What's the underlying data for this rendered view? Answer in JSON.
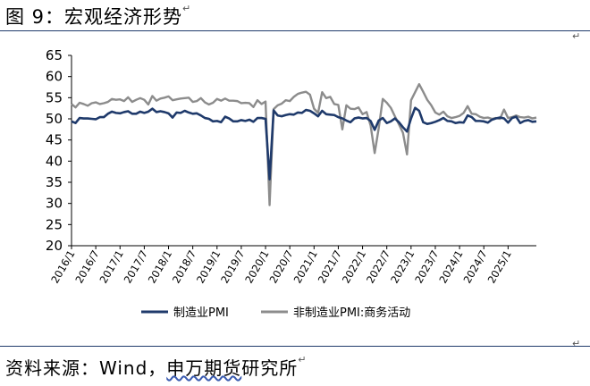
{
  "title": "图 9：宏观经济形势",
  "source": {
    "prefix": "资料来源：Wind，",
    "underlined": "申万期货",
    "suffix": "研究所"
  },
  "return_mark": "↵",
  "colors": {
    "rule": "#1f3a6b",
    "series_manufacturing": "#1f3a6b",
    "series_nonmanufacturing": "#8c8c8c"
  },
  "chart_data": {
    "type": "line",
    "y_ticks": [
      20,
      25,
      30,
      35,
      40,
      45,
      50,
      55,
      60,
      65
    ],
    "ylim": [
      20,
      65
    ],
    "x_range": [
      "2016-01",
      "2025-08"
    ],
    "x_ticks": [
      "2016/1",
      "2016/7",
      "2017/1",
      "2017/7",
      "2018/1",
      "2018/7",
      "2019/1",
      "2019/7",
      "2020/1",
      "2020/7",
      "2021/1",
      "2021/7",
      "2022/1",
      "2022/7",
      "2023/1",
      "2023/7",
      "2024/1",
      "2024/7",
      "2025/1"
    ],
    "grid": false,
    "legend_position": "bottom",
    "series": [
      {
        "name": "制造业PMI",
        "values": [
          49.4,
          49.0,
          50.2,
          50.1,
          50.1,
          50.0,
          49.9,
          50.4,
          50.4,
          51.2,
          51.7,
          51.4,
          51.3,
          51.6,
          51.8,
          51.2,
          51.2,
          51.7,
          51.4,
          51.7,
          52.4,
          51.6,
          51.8,
          51.6,
          51.3,
          50.3,
          51.5,
          51.4,
          51.9,
          51.5,
          51.2,
          51.3,
          50.8,
          50.2,
          50.0,
          49.4,
          49.5,
          49.2,
          50.5,
          50.1,
          49.4,
          49.4,
          49.7,
          49.5,
          49.8,
          49.3,
          50.2,
          50.2,
          50.0,
          35.7,
          52.0,
          50.8,
          50.6,
          50.9,
          51.1,
          51.0,
          51.5,
          51.4,
          52.1,
          51.9,
          51.3,
          50.6,
          51.9,
          51.1,
          51.0,
          50.9,
          50.4,
          50.1,
          49.6,
          49.2,
          50.1,
          50.3,
          50.1,
          50.2,
          49.5,
          47.4,
          49.6,
          50.2,
          49.0,
          49.4,
          50.1,
          49.2,
          48.0,
          47.0,
          50.1,
          52.6,
          51.9,
          49.2,
          48.8,
          49.0,
          49.3,
          49.7,
          50.2,
          49.5,
          49.4,
          49.0,
          49.2,
          49.1,
          50.8,
          50.4,
          49.5,
          49.5,
          49.4,
          49.1,
          49.8,
          50.1,
          50.3,
          50.1,
          49.1,
          50.2,
          50.5,
          49.0,
          49.5,
          49.7,
          49.3,
          49.4
        ]
      },
      {
        "name": "非制造业PMI:商务活动",
        "values": [
          53.5,
          52.7,
          53.8,
          53.5,
          53.1,
          53.7,
          53.9,
          53.5,
          53.7,
          54.0,
          54.7,
          54.5,
          54.6,
          54.2,
          55.1,
          54.0,
          54.5,
          54.9,
          54.5,
          53.4,
          55.4,
          54.3,
          54.8,
          55.0,
          55.3,
          54.4,
          54.6,
          54.8,
          54.9,
          55.0,
          54.0,
          54.2,
          54.9,
          53.9,
          53.4,
          53.8,
          54.7,
          54.3,
          54.8,
          54.3,
          54.3,
          54.2,
          53.7,
          53.8,
          53.7,
          52.8,
          54.4,
          53.5,
          54.1,
          29.6,
          52.3,
          53.2,
          53.6,
          54.4,
          54.2,
          55.2,
          55.9,
          56.2,
          56.4,
          55.7,
          52.4,
          51.4,
          56.3,
          54.9,
          55.2,
          53.5,
          53.3,
          47.5,
          53.2,
          52.4,
          52.3,
          52.7,
          51.1,
          51.6,
          48.4,
          41.9,
          47.8,
          54.7,
          53.8,
          52.6,
          50.6,
          48.7,
          46.7,
          41.6,
          54.4,
          56.3,
          58.2,
          56.4,
          54.5,
          53.2,
          51.5,
          51.0,
          51.7,
          50.6,
          50.2,
          50.4,
          50.7,
          51.4,
          53.0,
          51.2,
          51.1,
          50.5,
          50.2,
          50.3,
          50.0,
          50.2,
          50.0,
          52.2,
          50.2,
          50.4,
          50.8,
          50.4,
          50.3,
          50.5,
          50.1,
          50.3
        ]
      }
    ]
  }
}
